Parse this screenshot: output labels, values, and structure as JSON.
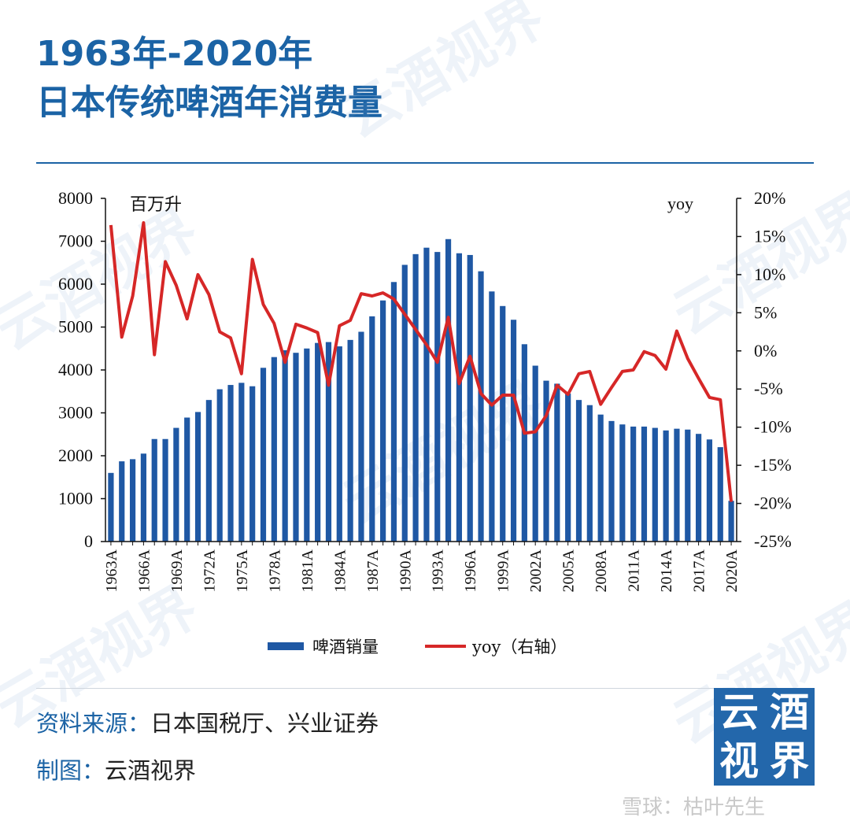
{
  "title_line1": "1963年-2020年",
  "title_line2": "日本传统啤酒年消费量",
  "watermark_text": "云酒视界",
  "footer": {
    "source_label": "资料来源：",
    "source_value": "日本国税厅、兴业证券",
    "maker_label": "制图：",
    "maker_value": "云酒视界"
  },
  "logo_chars": [
    "云",
    "酒",
    "视",
    "界"
  ],
  "credit": "雪球：枯叶先生",
  "colors": {
    "brand": "#1b63a5",
    "bar": "#1f58a4",
    "line": "#d62727"
  },
  "chart_data": {
    "type": "bar",
    "title": "",
    "left_unit_label": "百万升",
    "right_unit_label": "yoy",
    "x": [
      1963,
      1964,
      1965,
      1966,
      1967,
      1968,
      1969,
      1970,
      1971,
      1972,
      1973,
      1974,
      1975,
      1976,
      1977,
      1978,
      1979,
      1980,
      1981,
      1982,
      1983,
      1984,
      1985,
      1986,
      1987,
      1988,
      1989,
      1990,
      1991,
      1992,
      1993,
      1994,
      1995,
      1996,
      1997,
      1998,
      1999,
      2000,
      2001,
      2002,
      2003,
      2004,
      2005,
      2006,
      2007,
      2008,
      2009,
      2010,
      2011,
      2012,
      2013,
      2014,
      2015,
      2016,
      2017,
      2018,
      2019,
      2020
    ],
    "x_tick_labels": [
      "1963A",
      "1966A",
      "1969A",
      "1972A",
      "1975A",
      "1978A",
      "1981A",
      "1984A",
      "1987A",
      "1990A",
      "1993A",
      "1996A",
      "1999A",
      "2002A",
      "2005A",
      "2008A",
      "2011A",
      "2014A",
      "2017A",
      "2020A"
    ],
    "series": [
      {
        "name": "啤酒销量",
        "type": "bar",
        "axis": "left",
        "values": [
          1600,
          1870,
          1920,
          2050,
          2390,
          2390,
          2650,
          2890,
          3020,
          3300,
          3550,
          3650,
          3700,
          3620,
          4050,
          4300,
          4460,
          4400,
          4500,
          4630,
          4650,
          4550,
          4700,
          4890,
          5250,
          5620,
          6050,
          6450,
          6700,
          6850,
          6750,
          7050,
          6720,
          6680,
          6300,
          5830,
          5490,
          5170,
          4600,
          4100,
          3750,
          3680,
          3450,
          3300,
          3180,
          2960,
          2810,
          2730,
          2680,
          2680,
          2650,
          2590,
          2630,
          2610,
          2510,
          2380,
          2200,
          950
        ]
      },
      {
        "name": "yoy（右轴）",
        "type": "line",
        "axis": "right",
        "values": [
          16.5,
          1.8,
          7.2,
          16.8,
          -0.5,
          11.7,
          8.6,
          4.2,
          10.0,
          7.4,
          2.5,
          1.7,
          -3.0,
          12.0,
          6.1,
          3.6,
          -1.5,
          3.5,
          3.0,
          2.4,
          -4.5,
          3.3,
          4.0,
          7.5,
          7.2,
          7.6,
          6.8,
          4.8,
          2.8,
          0.8,
          -1.5,
          4.4,
          -4.3,
          -0.7,
          -5.6,
          -7.1,
          -5.8,
          -5.8,
          -10.8,
          -10.6,
          -8.5,
          -4.5,
          -5.7,
          -3.0,
          -2.7,
          -7.0,
          -4.8,
          -2.7,
          -2.5,
          -0.1,
          -0.6,
          -2.4,
          2.6,
          -1.0,
          -3.6,
          -6.1,
          -6.4,
          -19.8
        ]
      }
    ],
    "y_left": {
      "ylim": [
        0,
        8000
      ],
      "ticks": [
        "0",
        "1000",
        "2000",
        "3000",
        "4000",
        "5000",
        "6000",
        "7000",
        "8000"
      ]
    },
    "y_right": {
      "ylim": [
        -25,
        20
      ],
      "ticks": [
        "-25%",
        "-20%",
        "-15%",
        "-10%",
        "-5%",
        "0%",
        "5%",
        "10%",
        "15%",
        "20%"
      ]
    },
    "legend": {
      "position": "bottom",
      "entries": [
        "啤酒销量",
        "yoy（右轴）"
      ]
    },
    "grid": false
  }
}
